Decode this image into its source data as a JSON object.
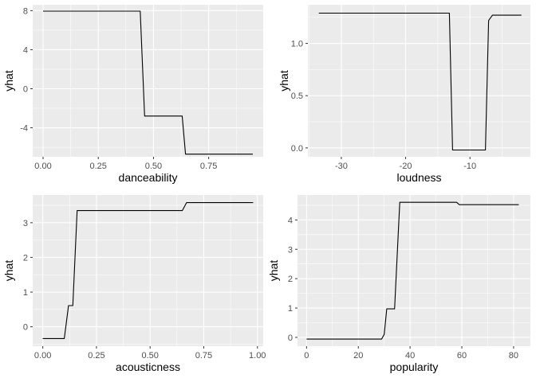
{
  "chart_data": [
    {
      "type": "line",
      "xlabel": "danceability",
      "ylabel": "yhat",
      "xlim": [
        -0.047,
        0.997
      ],
      "ylim": [
        -6.97,
        8.6
      ],
      "x_ticks": [
        0.0,
        0.25,
        0.5,
        0.75
      ],
      "x_tick_labels": [
        "0.00",
        "0.25",
        "0.50",
        "0.75"
      ],
      "y_ticks": [
        -4,
        0,
        4,
        8
      ],
      "y_tick_labels": [
        "-4",
        "0",
        "4",
        "8"
      ],
      "grid": true,
      "series": [
        {
          "x": [
            0.0,
            0.44,
            0.46,
            0.63,
            0.645,
            0.95
          ],
          "y": [
            7.95,
            7.95,
            -2.8,
            -2.8,
            -6.7,
            -6.7
          ]
        }
      ]
    },
    {
      "type": "line",
      "xlabel": "loudness",
      "ylabel": "yhat",
      "xlim": [
        -35.2,
        -0.6
      ],
      "ylim": [
        -0.085,
        1.37
      ],
      "x_ticks": [
        -30,
        -20,
        -10
      ],
      "x_tick_labels": [
        "-30",
        "-20",
        "-10"
      ],
      "y_ticks": [
        0.0,
        0.5,
        1.0
      ],
      "y_tick_labels": [
        "0.0",
        "0.5",
        "1.0"
      ],
      "grid": true,
      "series": [
        {
          "x": [
            -33.5,
            -13.2,
            -12.7,
            -7.6,
            -7.1,
            -6.5,
            -2.0
          ],
          "y": [
            1.29,
            1.29,
            -0.02,
            -0.02,
            1.22,
            1.27,
            1.27
          ]
        }
      ]
    },
    {
      "type": "line",
      "xlabel": "acousticness",
      "ylabel": "yhat",
      "xlim": [
        -0.047,
        1.027
      ],
      "ylim": [
        -0.56,
        3.8
      ],
      "x_ticks": [
        0.0,
        0.25,
        0.5,
        0.75,
        1.0
      ],
      "x_tick_labels": [
        "0.00",
        "0.25",
        "0.50",
        "0.75",
        "1.00"
      ],
      "y_ticks": [
        0,
        1,
        2,
        3
      ],
      "y_tick_labels": [
        "0",
        "1",
        "2",
        "3"
      ],
      "grid": true,
      "series": [
        {
          "x": [
            0.0,
            0.1,
            0.12,
            0.14,
            0.16,
            0.65,
            0.67,
            0.98
          ],
          "y": [
            -0.34,
            -0.34,
            0.61,
            0.61,
            3.35,
            3.35,
            3.58,
            3.58
          ]
        }
      ]
    },
    {
      "type": "line",
      "xlabel": "popularity",
      "ylabel": "yhat",
      "xlim": [
        -3.5,
        86.5
      ],
      "ylim": [
        -0.3,
        4.85
      ],
      "x_ticks": [
        0,
        20,
        40,
        60,
        80
      ],
      "x_tick_labels": [
        "0",
        "20",
        "40",
        "60",
        "80"
      ],
      "y_ticks": [
        0,
        1,
        2,
        3,
        4
      ],
      "y_tick_labels": [
        "0",
        "1",
        "2",
        "3",
        "4"
      ],
      "grid": true,
      "series": [
        {
          "x": [
            0,
            29,
            30,
            31,
            33,
            34,
            36,
            58,
            59,
            82
          ],
          "y": [
            -0.06,
            -0.06,
            0.1,
            0.97,
            0.97,
            0.97,
            4.6,
            4.6,
            4.52,
            4.52
          ]
        }
      ]
    }
  ]
}
